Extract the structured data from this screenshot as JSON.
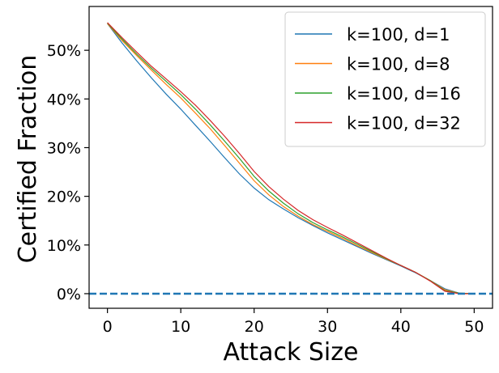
{
  "chart_data": {
    "type": "line",
    "title": "",
    "xlabel": "Attack Size",
    "ylabel": "Certified Fraction",
    "xlim": [
      -2.5,
      52.5
    ],
    "ylim": [
      -3,
      59
    ],
    "xticks": [
      0,
      10,
      20,
      30,
      40,
      50
    ],
    "xtick_labels": [
      "0",
      "10",
      "20",
      "30",
      "40",
      "50"
    ],
    "yticks": [
      0,
      10,
      20,
      30,
      40,
      50
    ],
    "ytick_labels": [
      "0%",
      "10%",
      "20%",
      "30%",
      "40%",
      "50%"
    ],
    "grid": false,
    "legend_position": "top-right",
    "reference_line": {
      "y": 0,
      "style": "dashed",
      "color": "#1f77b4"
    },
    "series": [
      {
        "name": "k=100, d=1",
        "color": "#1f77b4",
        "x": [
          0,
          2,
          4,
          6,
          8,
          10,
          12,
          14,
          16,
          18,
          20,
          22,
          24,
          26,
          28,
          30,
          32,
          34,
          36,
          38,
          40,
          42,
          44,
          46,
          48,
          50
        ],
        "y": [
          55.5,
          51.5,
          47.8,
          44.3,
          41.0,
          37.9,
          34.6,
          31.3,
          27.9,
          24.6,
          21.7,
          19.3,
          17.4,
          15.6,
          14.0,
          12.5,
          11.1,
          9.7,
          8.3,
          7.0,
          5.7,
          4.3,
          2.7,
          1.0,
          0.1,
          0.0
        ]
      },
      {
        "name": "k=100, d=8",
        "color": "#ff7f0e",
        "x": [
          0,
          2,
          4,
          6,
          8,
          10,
          12,
          14,
          16,
          18,
          20,
          22,
          24,
          26,
          28,
          30,
          32,
          34,
          36,
          38,
          40,
          42,
          44,
          46,
          48,
          50
        ],
        "y": [
          55.5,
          52.0,
          48.9,
          45.9,
          43.0,
          40.2,
          37.1,
          33.9,
          30.4,
          26.8,
          23.2,
          20.3,
          17.9,
          15.9,
          14.2,
          12.8,
          11.4,
          9.9,
          8.5,
          7.1,
          5.8,
          4.4,
          2.7,
          0.8,
          0.1,
          0.0
        ]
      },
      {
        "name": "k=100, d=16",
        "color": "#2ca02c",
        "x": [
          0,
          2,
          4,
          6,
          8,
          10,
          12,
          14,
          16,
          18,
          20,
          22,
          24,
          26,
          28,
          30,
          32,
          34,
          36,
          38,
          40,
          42,
          44,
          46,
          48,
          50
        ],
        "y": [
          55.6,
          52.3,
          49.2,
          46.3,
          43.6,
          40.9,
          37.9,
          34.7,
          31.3,
          27.8,
          24.1,
          21.1,
          18.6,
          16.4,
          14.6,
          13.1,
          11.7,
          10.2,
          8.7,
          7.2,
          5.8,
          4.4,
          2.7,
          0.6,
          0.1,
          0.0
        ]
      },
      {
        "name": "k=100, d=32",
        "color": "#d62728",
        "x": [
          0,
          2,
          4,
          6,
          8,
          10,
          12,
          14,
          16,
          18,
          20,
          22,
          24,
          26,
          28,
          30,
          32,
          34,
          36,
          38,
          40,
          42,
          44,
          46,
          48,
          50
        ],
        "y": [
          55.7,
          52.6,
          49.6,
          46.7,
          44.1,
          41.5,
          38.7,
          35.6,
          32.3,
          28.8,
          25.1,
          22.0,
          19.4,
          17.1,
          15.2,
          13.6,
          12.1,
          10.5,
          8.9,
          7.3,
          5.8,
          4.4,
          2.6,
          0.5,
          0.0,
          0.0
        ]
      }
    ]
  }
}
